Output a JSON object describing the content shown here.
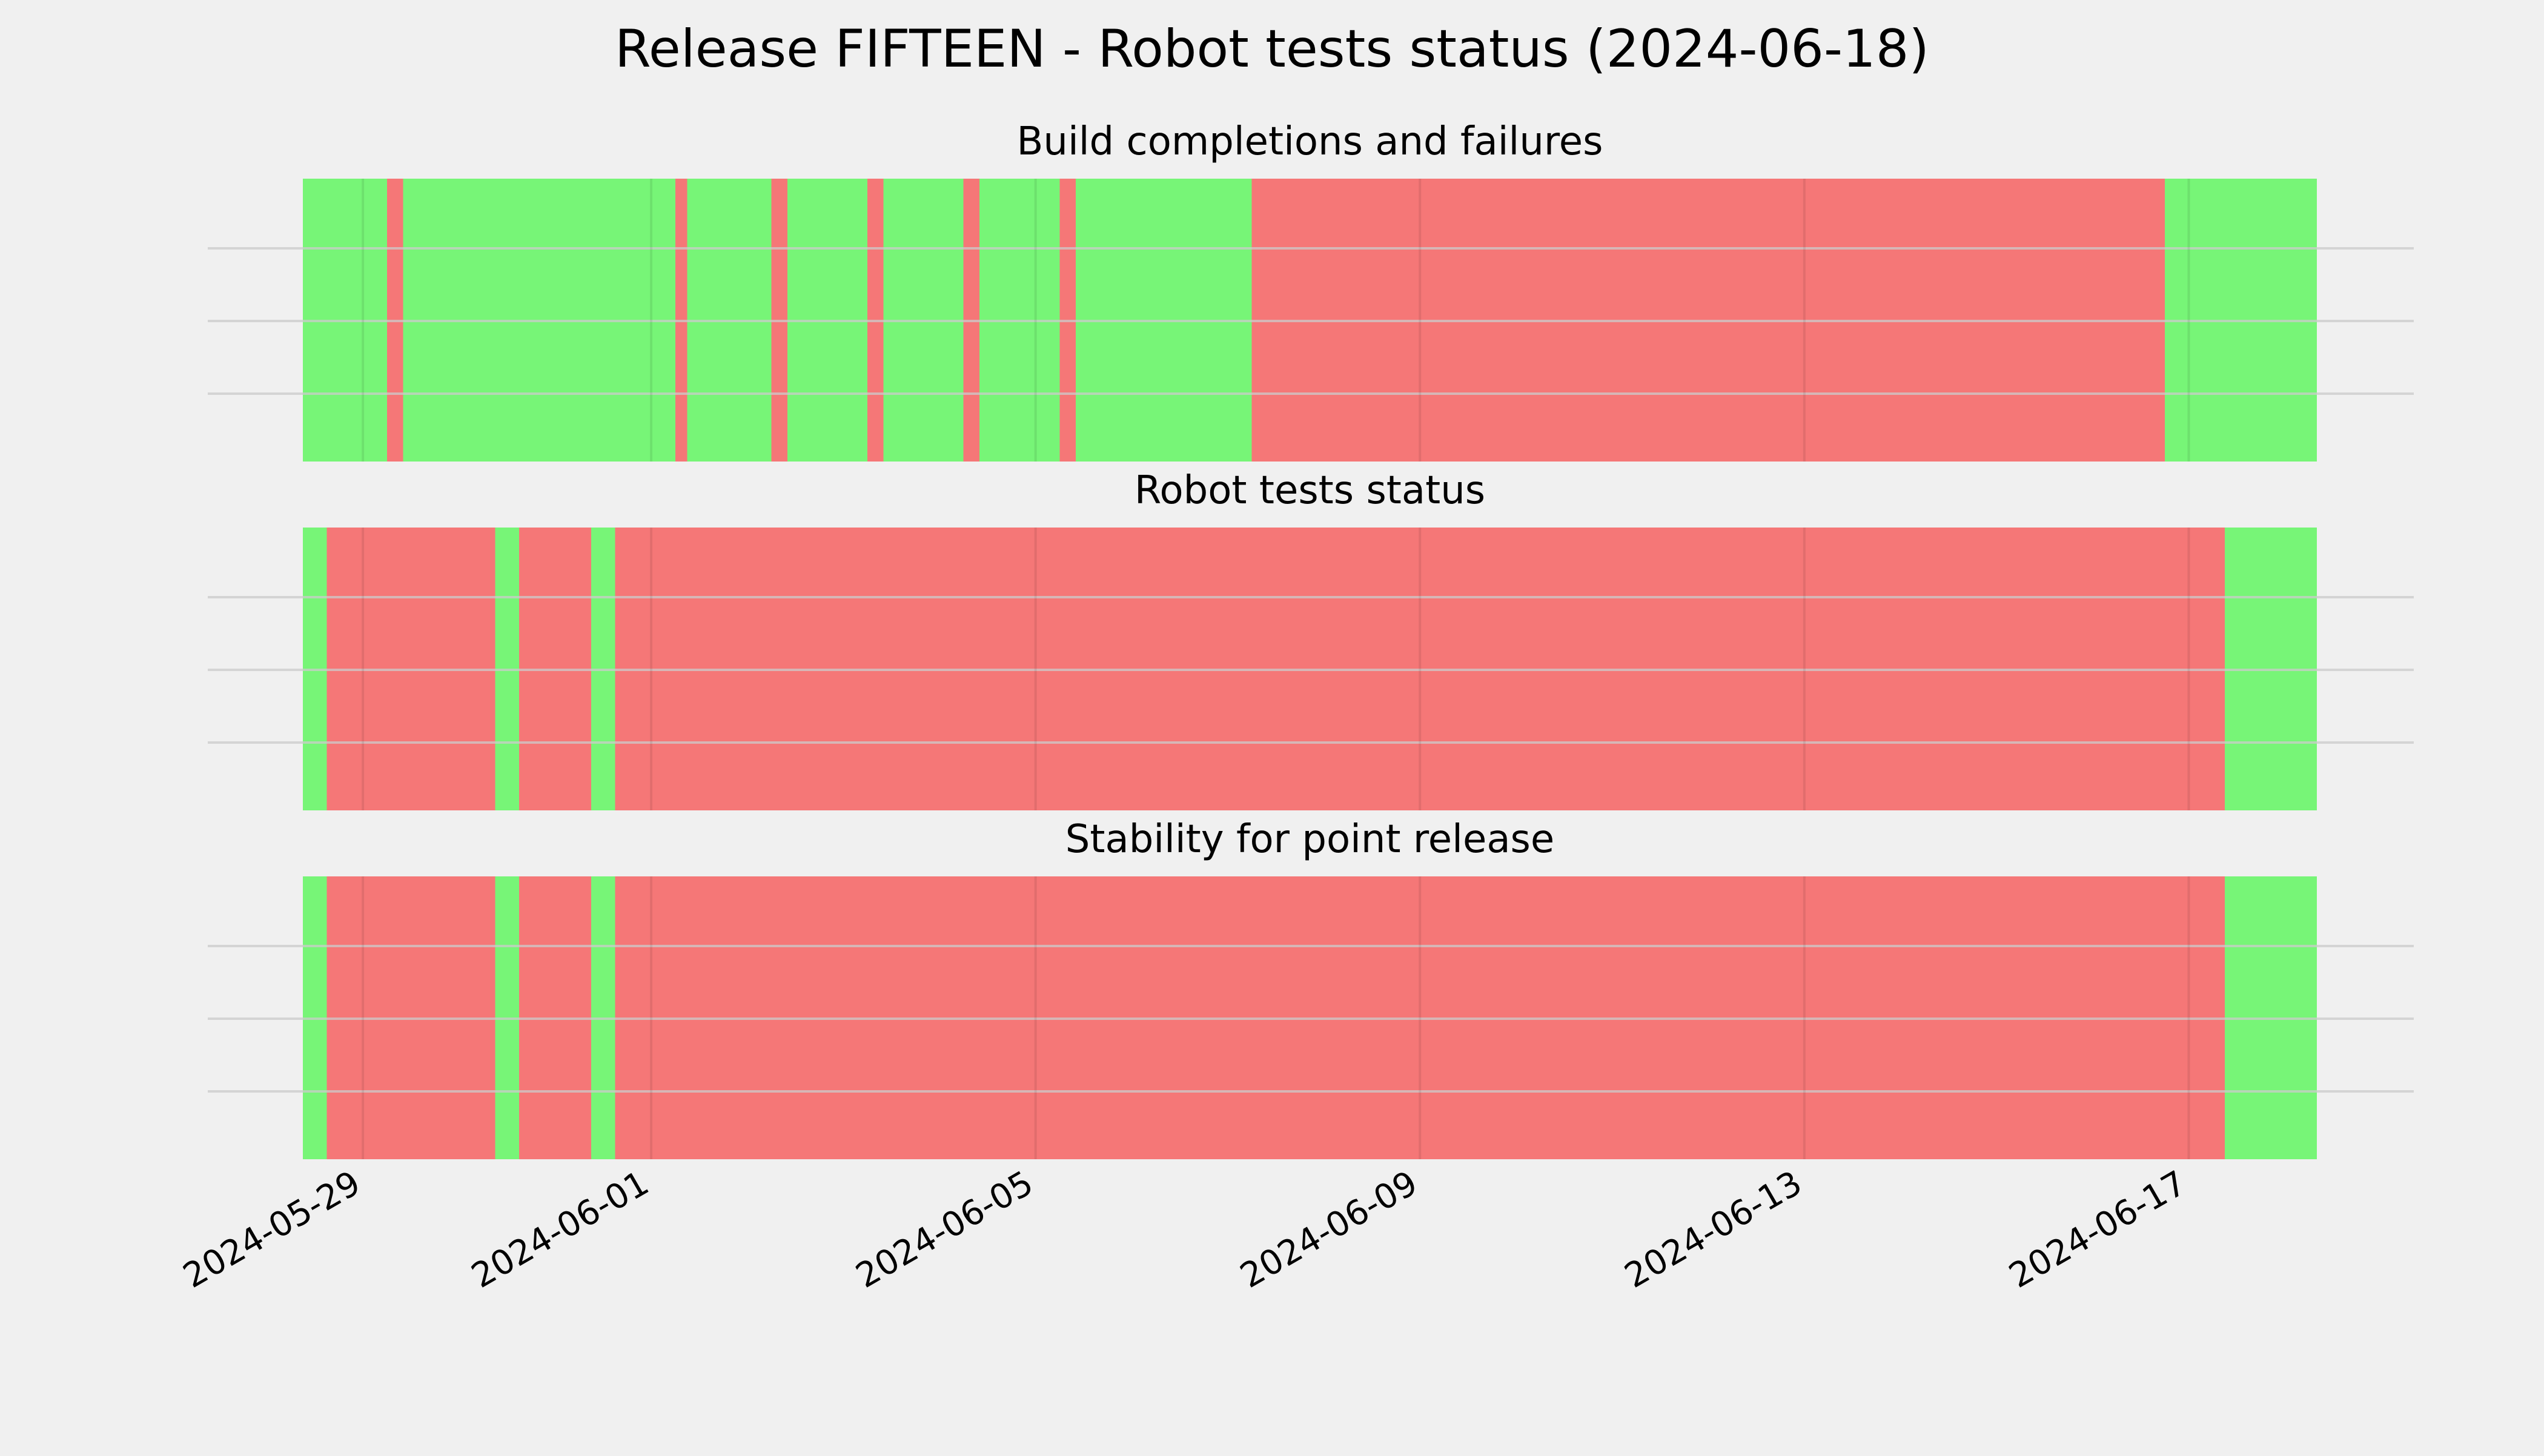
{
  "figure": {
    "title": "Release FIFTEEN - Robot tests status (2024-06-18)",
    "background": "#f0f0f0"
  },
  "colors": {
    "ok": "#77f577",
    "fail": "#f57777",
    "grid": "#cbcbcb",
    "text": "#000000"
  },
  "chart_data": {
    "type": "timeline",
    "date_range": [
      "2024-05-28T09:00",
      "2024-06-18T08:00"
    ],
    "grid": true,
    "x_ticks": [
      "2024-05-29",
      "2024-06-01",
      "2024-06-05",
      "2024-06-09",
      "2024-06-13",
      "2024-06-17"
    ],
    "panels": [
      {
        "title": "Build completions and failures",
        "segments": [
          {
            "start": "2024-05-28T09:00",
            "end": "2024-05-29T06:00",
            "status": "ok"
          },
          {
            "start": "2024-05-29T06:00",
            "end": "2024-05-29T10:00",
            "status": "fail"
          },
          {
            "start": "2024-05-29T10:00",
            "end": "2024-06-01T06:00",
            "status": "ok"
          },
          {
            "start": "2024-06-01T06:00",
            "end": "2024-06-01T09:00",
            "status": "fail"
          },
          {
            "start": "2024-06-01T09:00",
            "end": "2024-06-02T06:00",
            "status": "ok"
          },
          {
            "start": "2024-06-02T06:00",
            "end": "2024-06-02T10:00",
            "status": "fail"
          },
          {
            "start": "2024-06-02T10:00",
            "end": "2024-06-03T06:00",
            "status": "ok"
          },
          {
            "start": "2024-06-03T06:00",
            "end": "2024-06-03T10:00",
            "status": "fail"
          },
          {
            "start": "2024-06-03T10:00",
            "end": "2024-06-04T06:00",
            "status": "ok"
          },
          {
            "start": "2024-06-04T06:00",
            "end": "2024-06-04T10:00",
            "status": "fail"
          },
          {
            "start": "2024-06-04T10:00",
            "end": "2024-06-05T06:00",
            "status": "ok"
          },
          {
            "start": "2024-06-05T06:00",
            "end": "2024-06-05T10:00",
            "status": "fail"
          },
          {
            "start": "2024-06-05T10:00",
            "end": "2024-06-07T06:00",
            "status": "ok"
          },
          {
            "start": "2024-06-07T06:00",
            "end": "2024-06-16T18:00",
            "status": "fail"
          },
          {
            "start": "2024-06-16T18:00",
            "end": "2024-06-18T08:00",
            "status": "ok"
          }
        ]
      },
      {
        "title": "Robot tests status",
        "segments": [
          {
            "start": "2024-05-28T09:00",
            "end": "2024-05-28T15:00",
            "status": "ok"
          },
          {
            "start": "2024-05-28T15:00",
            "end": "2024-05-30T09:00",
            "status": "fail"
          },
          {
            "start": "2024-05-30T09:00",
            "end": "2024-05-30T15:00",
            "status": "ok"
          },
          {
            "start": "2024-05-30T15:00",
            "end": "2024-05-31T09:00",
            "status": "fail"
          },
          {
            "start": "2024-05-31T09:00",
            "end": "2024-05-31T15:00",
            "status": "ok"
          },
          {
            "start": "2024-05-31T15:00",
            "end": "2024-06-17T09:00",
            "status": "fail"
          },
          {
            "start": "2024-06-17T09:00",
            "end": "2024-06-18T08:00",
            "status": "ok"
          }
        ]
      },
      {
        "title": "Stability for point release",
        "segments": [
          {
            "start": "2024-05-28T09:00",
            "end": "2024-05-28T15:00",
            "status": "ok"
          },
          {
            "start": "2024-05-28T15:00",
            "end": "2024-05-30T09:00",
            "status": "fail"
          },
          {
            "start": "2024-05-30T09:00",
            "end": "2024-05-30T15:00",
            "status": "ok"
          },
          {
            "start": "2024-05-30T15:00",
            "end": "2024-05-31T09:00",
            "status": "fail"
          },
          {
            "start": "2024-05-31T09:00",
            "end": "2024-05-31T15:00",
            "status": "ok"
          },
          {
            "start": "2024-05-31T15:00",
            "end": "2024-06-17T09:00",
            "status": "fail"
          },
          {
            "start": "2024-06-17T09:00",
            "end": "2024-06-18T08:00",
            "status": "ok"
          }
        ]
      }
    ]
  }
}
